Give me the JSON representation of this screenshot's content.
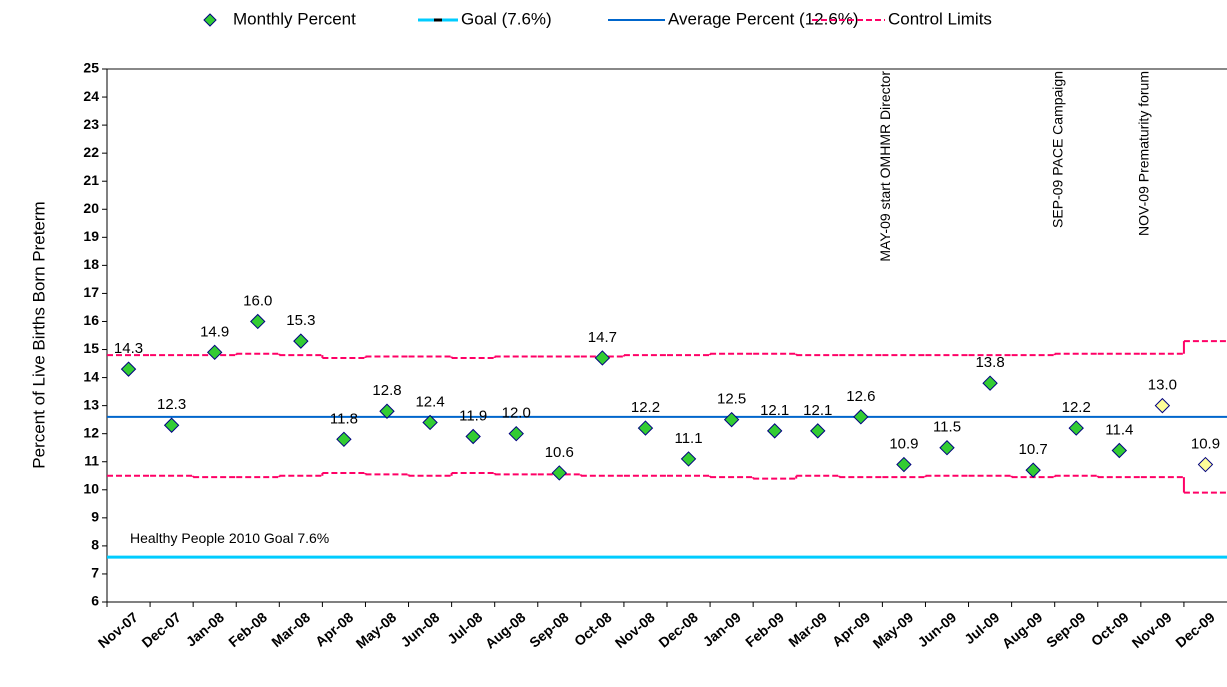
{
  "chart_data": {
    "type": "scatter",
    "y_label": "Percent of Live Births Born Preterm",
    "categories": [
      "Nov-07",
      "Dec-07",
      "Jan-08",
      "Feb-08",
      "Mar-08",
      "Apr-08",
      "May-08",
      "Jun-08",
      "Jul-08",
      "Aug-08",
      "Sep-08",
      "Oct-08",
      "Nov-08",
      "Dec-08",
      "Jan-09",
      "Feb-09",
      "Mar-09",
      "Apr-09",
      "May-09",
      "Jun-09",
      "Jul-09",
      "Aug-09",
      "Sep-09",
      "Oct-09",
      "Nov-09",
      "Dec-09"
    ],
    "series": [
      {
        "name": "Monthly Percent",
        "color": "#33cc33",
        "point_colors": [
          "#33cc33",
          "#33cc33",
          "#33cc33",
          "#33cc33",
          "#33cc33",
          "#33cc33",
          "#33cc33",
          "#33cc33",
          "#33cc33",
          "#33cc33",
          "#33cc33",
          "#33cc33",
          "#33cc33",
          "#33cc33",
          "#33cc33",
          "#33cc33",
          "#33cc33",
          "#33cc33",
          "#33cc33",
          "#33cc33",
          "#33cc33",
          "#33cc33",
          "#33cc33",
          "#33cc33",
          "#ffff99",
          "#ffff99"
        ],
        "values": [
          14.3,
          12.3,
          14.9,
          16.0,
          15.3,
          11.8,
          12.8,
          12.4,
          11.9,
          12.0,
          10.6,
          14.7,
          12.2,
          11.1,
          12.5,
          12.1,
          12.1,
          12.6,
          10.9,
          11.5,
          13.8,
          10.7,
          12.2,
          11.4,
          13.0,
          10.9
        ],
        "value_labels": [
          "14.3",
          "12.3",
          "14.9",
          "16.0",
          "15.3",
          "11.8",
          "12.8",
          "12.4",
          "11.9",
          "12.0",
          "10.6",
          "14.7",
          "12.2",
          "11.1",
          "12.5",
          "12.1",
          "12.1",
          "12.6",
          "10.9",
          "11.5",
          "13.8",
          "10.7",
          "12.2",
          "11.4",
          "13.0",
          "10.9"
        ]
      }
    ],
    "goal_line": {
      "name": "Goal (7.6%)",
      "value": 7.6,
      "color": "#00ccff",
      "label": "Healthy People 2010 Goal 7.6%"
    },
    "average_line": {
      "name": "Average Percent (12.6%)",
      "value": 12.6,
      "color": "#0066cc"
    },
    "control_limits": {
      "name": "Control Limits",
      "color": "#ff0066",
      "upper": [
        14.8,
        14.8,
        14.8,
        14.85,
        14.8,
        14.7,
        14.75,
        14.75,
        14.7,
        14.75,
        14.75,
        14.75,
        14.8,
        14.8,
        14.85,
        14.85,
        14.8,
        14.8,
        14.8,
        14.8,
        14.8,
        14.8,
        14.85,
        14.85,
        14.85,
        15.3
      ],
      "lower": [
        10.5,
        10.5,
        10.45,
        10.45,
        10.5,
        10.6,
        10.55,
        10.5,
        10.6,
        10.55,
        10.55,
        10.5,
        10.5,
        10.5,
        10.45,
        10.4,
        10.5,
        10.45,
        10.45,
        10.5,
        10.5,
        10.45,
        10.5,
        10.45,
        10.45,
        9.9
      ]
    },
    "annotations": [
      {
        "text": "MAY-09 start OMHMR Director",
        "category": "May-09"
      },
      {
        "text": "SEP-09 PACE Campaign",
        "category": "Sep-09"
      },
      {
        "text": "NOV-09 Prematurity forum",
        "category": "Nov-09"
      }
    ],
    "ylim": [
      6,
      25
    ],
    "yticks": [
      6,
      7,
      8,
      9,
      10,
      11,
      12,
      13,
      14,
      15,
      16,
      17,
      18,
      19,
      20,
      21,
      22,
      23,
      24,
      25
    ]
  }
}
